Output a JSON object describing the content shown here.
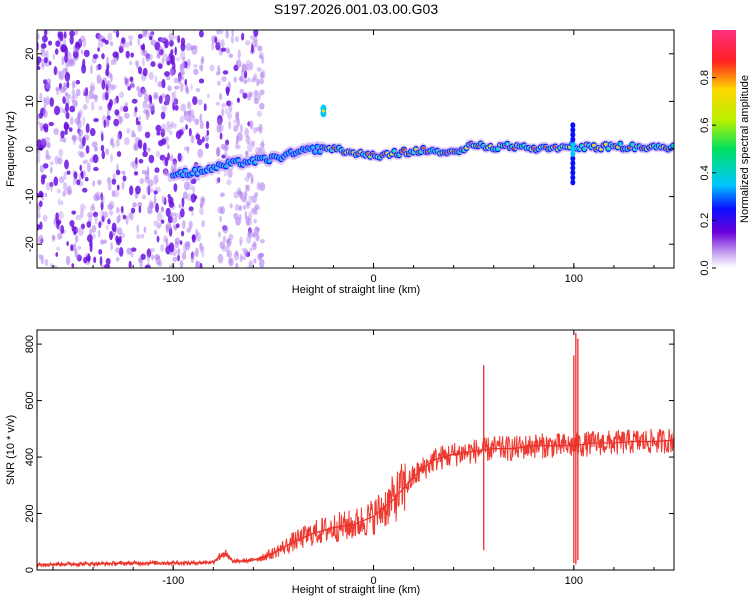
{
  "chart_data": [
    {
      "type": "heatmap",
      "title": "S197.2026.001.03.00.G03",
      "xlabel": "Height of straight line (km)",
      "ylabel": "Frequency (Hz)",
      "xlim": [
        -168,
        150
      ],
      "ylim": [
        -25,
        25
      ],
      "xticks": [
        -100,
        0,
        100
      ],
      "yticks": [
        -20,
        -10,
        0,
        10,
        20
      ],
      "colorbar": {
        "label": "Normalized spectral amplitude",
        "range": [
          0,
          1
        ],
        "ticks": [
          0.0,
          0.2,
          0.4,
          0.6,
          0.8
        ],
        "tick_labels": [
          "0.0",
          "0.2",
          "0.4",
          "0.6",
          "0.8"
        ]
      },
      "signal_track": {
        "x": [
          -100,
          -90,
          -80,
          -70,
          -60,
          -50,
          -40,
          -30,
          -20,
          -10,
          0,
          10,
          20,
          30,
          40,
          50,
          60,
          70,
          80,
          90,
          100,
          110,
          120,
          130,
          140,
          150
        ],
        "y": [
          -5,
          -5,
          -4,
          -3,
          -2.5,
          -2,
          -1,
          0,
          0,
          -1,
          -1.5,
          -1,
          -0.5,
          0,
          -1,
          1,
          0.5,
          0.5,
          0,
          0,
          0.5,
          0.5,
          0.5,
          0.5,
          0.5,
          0.5
        ]
      },
      "noise_region_x": [
        -168,
        -55
      ]
    },
    {
      "type": "line",
      "xlabel": "Height of straight line (km)",
      "ylabel": "SNR (10 * v/v)",
      "xlim": [
        -168,
        150
      ],
      "ylim": [
        0,
        850
      ],
      "xticks": [
        -100,
        0,
        100
      ],
      "yticks": [
        0,
        200,
        400,
        600,
        800
      ],
      "series": [
        {
          "name": "SNR",
          "color": "#e8302a",
          "x": [
            -168,
            -140,
            -110,
            -90,
            -80,
            -75,
            -70,
            -60,
            -50,
            -40,
            -30,
            -20,
            -10,
            0,
            10,
            20,
            30,
            40,
            50,
            60,
            70,
            80,
            90,
            100,
            110,
            120,
            130,
            140,
            150
          ],
          "y": [
            20,
            22,
            25,
            25,
            28,
            60,
            30,
            35,
            60,
            100,
            130,
            150,
            160,
            190,
            250,
            330,
            390,
            410,
            420,
            430,
            430,
            440,
            440,
            440,
            450,
            450,
            455,
            455,
            460
          ]
        }
      ]
    }
  ]
}
